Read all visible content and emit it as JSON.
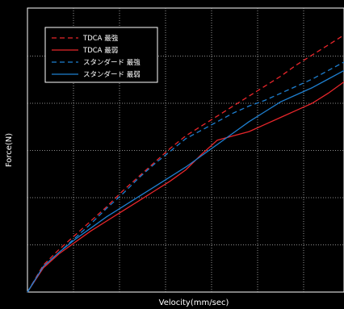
{
  "chart_data": {
    "type": "line",
    "xlabel": "Velocity(mm/sec)",
    "ylabel": "Force(N)",
    "x": [
      0,
      10,
      20,
      30,
      40,
      50,
      60,
      70,
      80,
      90,
      100,
      110,
      120,
      130,
      140,
      150,
      160,
      170,
      180,
      190,
      200
    ],
    "xlim": [
      0,
      200
    ],
    "ylim": [
      0,
      200
    ],
    "grid": true,
    "legend_position": "top-left",
    "colors": {
      "background": "#000000",
      "grid": "#bbbbbb",
      "tdca": "#e8262b",
      "standard": "#1e7fd0"
    },
    "series": [
      {
        "name": "TDCA 最強",
        "style": "dashed",
        "color": "#e8262b",
        "values": [
          0,
          19,
          30,
          40,
          50,
          60,
          71,
          81,
          91,
          101,
          110,
          117,
          124,
          131,
          138,
          145,
          152,
          160,
          167,
          174,
          181
        ]
      },
      {
        "name": "TDCA 最弱",
        "style": "solid",
        "color": "#e8262b",
        "values": [
          0,
          17,
          27,
          35,
          43,
          50,
          57,
          64,
          71,
          78,
          86,
          97,
          107,
          110,
          113,
          118,
          123,
          128,
          133,
          140,
          148
        ]
      },
      {
        "name": "スタンダード 最強",
        "style": "dashed",
        "color": "#1e7fd0",
        "values": [
          0,
          18,
          28,
          38,
          48,
          59,
          69,
          80,
          90,
          99,
          108,
          114,
          120,
          126,
          131,
          135,
          140,
          145,
          150,
          156,
          162
        ]
      },
      {
        "name": "スタンダード 最弱",
        "style": "solid",
        "color": "#1e7fd0",
        "values": [
          0,
          18,
          28,
          37,
          45,
          53,
          60,
          67,
          74,
          81,
          88,
          96,
          104,
          112,
          120,
          127,
          134,
          139,
          144,
          150,
          156
        ]
      }
    ]
  }
}
